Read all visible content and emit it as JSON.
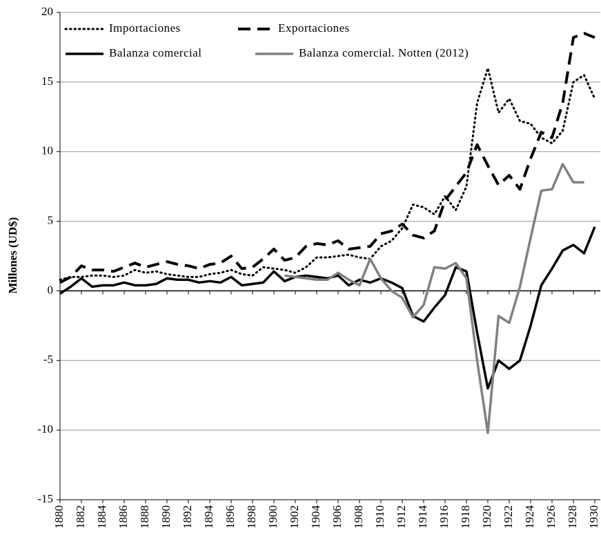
{
  "chart_data": {
    "type": "line",
    "y_label": "Millones (UD$)",
    "x": [
      1880,
      1881,
      1882,
      1883,
      1884,
      1885,
      1886,
      1887,
      1888,
      1889,
      1890,
      1891,
      1892,
      1893,
      1894,
      1895,
      1896,
      1897,
      1898,
      1899,
      1900,
      1901,
      1902,
      1903,
      1904,
      1905,
      1906,
      1907,
      1908,
      1909,
      1910,
      1911,
      1912,
      1913,
      1914,
      1915,
      1916,
      1917,
      1918,
      1919,
      1920,
      1921,
      1922,
      1923,
      1924,
      1925,
      1926,
      1927,
      1928,
      1929,
      1930
    ],
    "series": [
      {
        "name": "Importaciones",
        "color": "#000000",
        "dash": "dotted",
        "values": [
          0.8,
          1.0,
          1.0,
          1.1,
          1.1,
          1.0,
          1.1,
          1.5,
          1.3,
          1.4,
          1.2,
          1.1,
          1.0,
          1.0,
          1.2,
          1.3,
          1.5,
          1.2,
          1.1,
          1.7,
          1.6,
          1.5,
          1.3,
          1.7,
          2.4,
          2.4,
          2.5,
          2.6,
          2.4,
          2.3,
          3.2,
          3.6,
          4.5,
          6.2,
          6.0,
          5.5,
          6.8,
          5.8,
          7.5,
          13.5,
          16.0,
          12.8,
          13.8,
          12.2,
          12.0,
          11.0,
          10.6,
          11.5,
          15.0,
          15.5,
          13.8
        ]
      },
      {
        "name": "Exportaciones",
        "color": "#000000",
        "dash": "dashed",
        "values": [
          0.6,
          1.0,
          1.8,
          1.5,
          1.5,
          1.4,
          1.7,
          2.0,
          1.7,
          1.9,
          2.1,
          1.9,
          1.8,
          1.6,
          1.9,
          2.0,
          2.5,
          1.6,
          1.7,
          2.3,
          3.0,
          2.2,
          2.4,
          3.2,
          3.4,
          3.3,
          3.6,
          3.0,
          3.1,
          3.2,
          4.1,
          4.3,
          4.8,
          4.0,
          3.8,
          4.3,
          6.5,
          7.5,
          8.5,
          10.5,
          9.0,
          7.6,
          8.3,
          7.3,
          9.5,
          11.4,
          11.0,
          13.5,
          18.2,
          18.5,
          18.2
        ]
      },
      {
        "name": "Balanza comercial",
        "color": "#000000",
        "dash": "solid",
        "values": [
          -0.2,
          0.3,
          0.9,
          0.3,
          0.4,
          0.4,
          0.6,
          0.4,
          0.4,
          0.5,
          0.9,
          0.8,
          0.8,
          0.6,
          0.7,
          0.6,
          1.0,
          0.4,
          0.5,
          0.6,
          1.4,
          0.7,
          1.0,
          1.1,
          1.0,
          0.9,
          1.1,
          0.4,
          0.8,
          0.6,
          0.9,
          0.6,
          0.2,
          -1.8,
          -2.2,
          -1.2,
          -0.3,
          1.7,
          1.4,
          -3.0,
          -7.0,
          -5.0,
          -5.6,
          -5.0,
          -2.5,
          0.4,
          1.6,
          2.9,
          3.3,
          2.7,
          4.6
        ]
      },
      {
        "name": "Balanza comercial. Notten (2012)",
        "color": "#808080",
        "dash": "solid",
        "values": [
          null,
          null,
          null,
          null,
          null,
          null,
          null,
          null,
          null,
          null,
          null,
          null,
          null,
          null,
          null,
          null,
          null,
          null,
          null,
          null,
          null,
          1.1,
          1.0,
          0.9,
          0.8,
          0.8,
          1.3,
          0.8,
          0.4,
          2.3,
          0.9,
          0.0,
          -0.5,
          -1.9,
          -1.0,
          1.7,
          1.6,
          2.0,
          0.9,
          -5.0,
          -10.2,
          -1.8,
          -2.3,
          0.3,
          3.8,
          7.2,
          7.3,
          9.1,
          7.8,
          7.8,
          null
        ]
      }
    ],
    "xlim": [
      1880,
      1930
    ],
    "xticks": [
      1880,
      1882,
      1884,
      1886,
      1888,
      1890,
      1892,
      1894,
      1896,
      1898,
      1900,
      1902,
      1904,
      1906,
      1908,
      1910,
      1912,
      1914,
      1916,
      1918,
      1920,
      1922,
      1924,
      1926,
      1928,
      1930
    ],
    "ylim": [
      -15,
      20
    ],
    "yticks": [
      -15,
      -10,
      -5,
      0,
      5,
      10,
      15,
      20
    ],
    "grid": true,
    "legend": "top-left"
  }
}
